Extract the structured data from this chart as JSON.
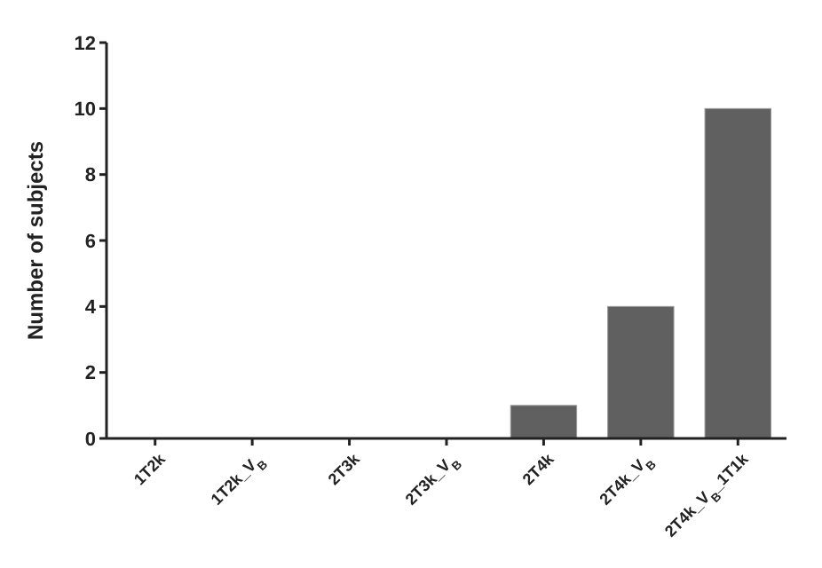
{
  "chart_data": {
    "type": "bar",
    "ylabel": "Number of subjects",
    "categories": [
      "1T2k",
      "1T2k_V$_{B}$",
      "2T3k",
      "2T3k_V$_{B}$",
      "2T4k",
      "2T4k_V$_{B}$",
      "2T4k_V$_{B}$_1T1k"
    ],
    "values": [
      0,
      0,
      0,
      0,
      1,
      4,
      10
    ],
    "color": "#606060",
    "ylim": [
      0,
      12
    ],
    "yticks": [
      0,
      2,
      4,
      6,
      8,
      10,
      12
    ],
    "grid": false
  }
}
